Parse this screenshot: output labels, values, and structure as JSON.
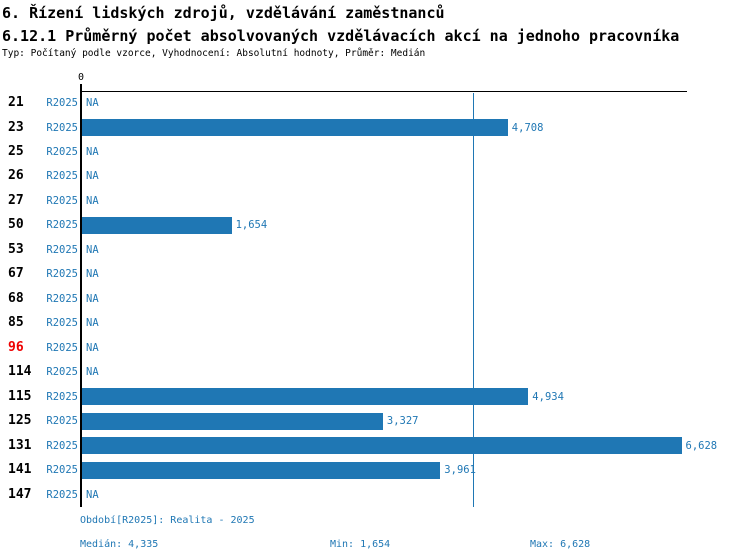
{
  "header": {
    "title": "6. Řízení lidských zdrojů, vzdělávání zaměstnanců",
    "subtitle": "6.12.1 Průměrný počet absolvovaných vzdělávacích akcí na jednoho pracovníka",
    "meta": "Typ: Počítaný podle vzorce, Vyhodnocení: Absolutní hodnoty, Průměr: Medián"
  },
  "colors": {
    "bar": "#1f77b4",
    "blue_text": "#1f77b4",
    "highlight_red": "#ee0000",
    "axis_black": "#000000"
  },
  "chart_data": {
    "type": "bar",
    "orientation": "horizontal",
    "axis": {
      "zero_label": "0",
      "min": 0,
      "max": 6.7,
      "grid": false
    },
    "median_line_value": 4.335,
    "series_name": "R2025",
    "rows": [
      {
        "category": "21",
        "period": "R2025",
        "value": null,
        "label": "NA",
        "highlight": false
      },
      {
        "category": "23",
        "period": "R2025",
        "value": 4.708,
        "label": "4,708",
        "highlight": false
      },
      {
        "category": "25",
        "period": "R2025",
        "value": null,
        "label": "NA",
        "highlight": false
      },
      {
        "category": "26",
        "period": "R2025",
        "value": null,
        "label": "NA",
        "highlight": false
      },
      {
        "category": "27",
        "period": "R2025",
        "value": null,
        "label": "NA",
        "highlight": false
      },
      {
        "category": "50",
        "period": "R2025",
        "value": 1.654,
        "label": "1,654",
        "highlight": false
      },
      {
        "category": "53",
        "period": "R2025",
        "value": null,
        "label": "NA",
        "highlight": false
      },
      {
        "category": "67",
        "period": "R2025",
        "value": null,
        "label": "NA",
        "highlight": false
      },
      {
        "category": "68",
        "period": "R2025",
        "value": null,
        "label": "NA",
        "highlight": false
      },
      {
        "category": "85",
        "period": "R2025",
        "value": null,
        "label": "NA",
        "highlight": false
      },
      {
        "category": "96",
        "period": "R2025",
        "value": null,
        "label": "NA",
        "highlight": true
      },
      {
        "category": "114",
        "period": "R2025",
        "value": null,
        "label": "NA",
        "highlight": false
      },
      {
        "category": "115",
        "period": "R2025",
        "value": 4.934,
        "label": "4,934",
        "highlight": false
      },
      {
        "category": "125",
        "period": "R2025",
        "value": 3.327,
        "label": "3,327",
        "highlight": false
      },
      {
        "category": "131",
        "period": "R2025",
        "value": 6.628,
        "label": "6,628",
        "highlight": false
      },
      {
        "category": "141",
        "period": "R2025",
        "value": 3.961,
        "label": "3,961",
        "highlight": false
      },
      {
        "category": "147",
        "period": "R2025",
        "value": null,
        "label": "NA",
        "highlight": false
      }
    ]
  },
  "footer": {
    "period": "Období[R2025]: Realita - 2025",
    "median": "Medián: 4,335",
    "min": "Min: 1,654",
    "max": "Max: 6,628"
  }
}
